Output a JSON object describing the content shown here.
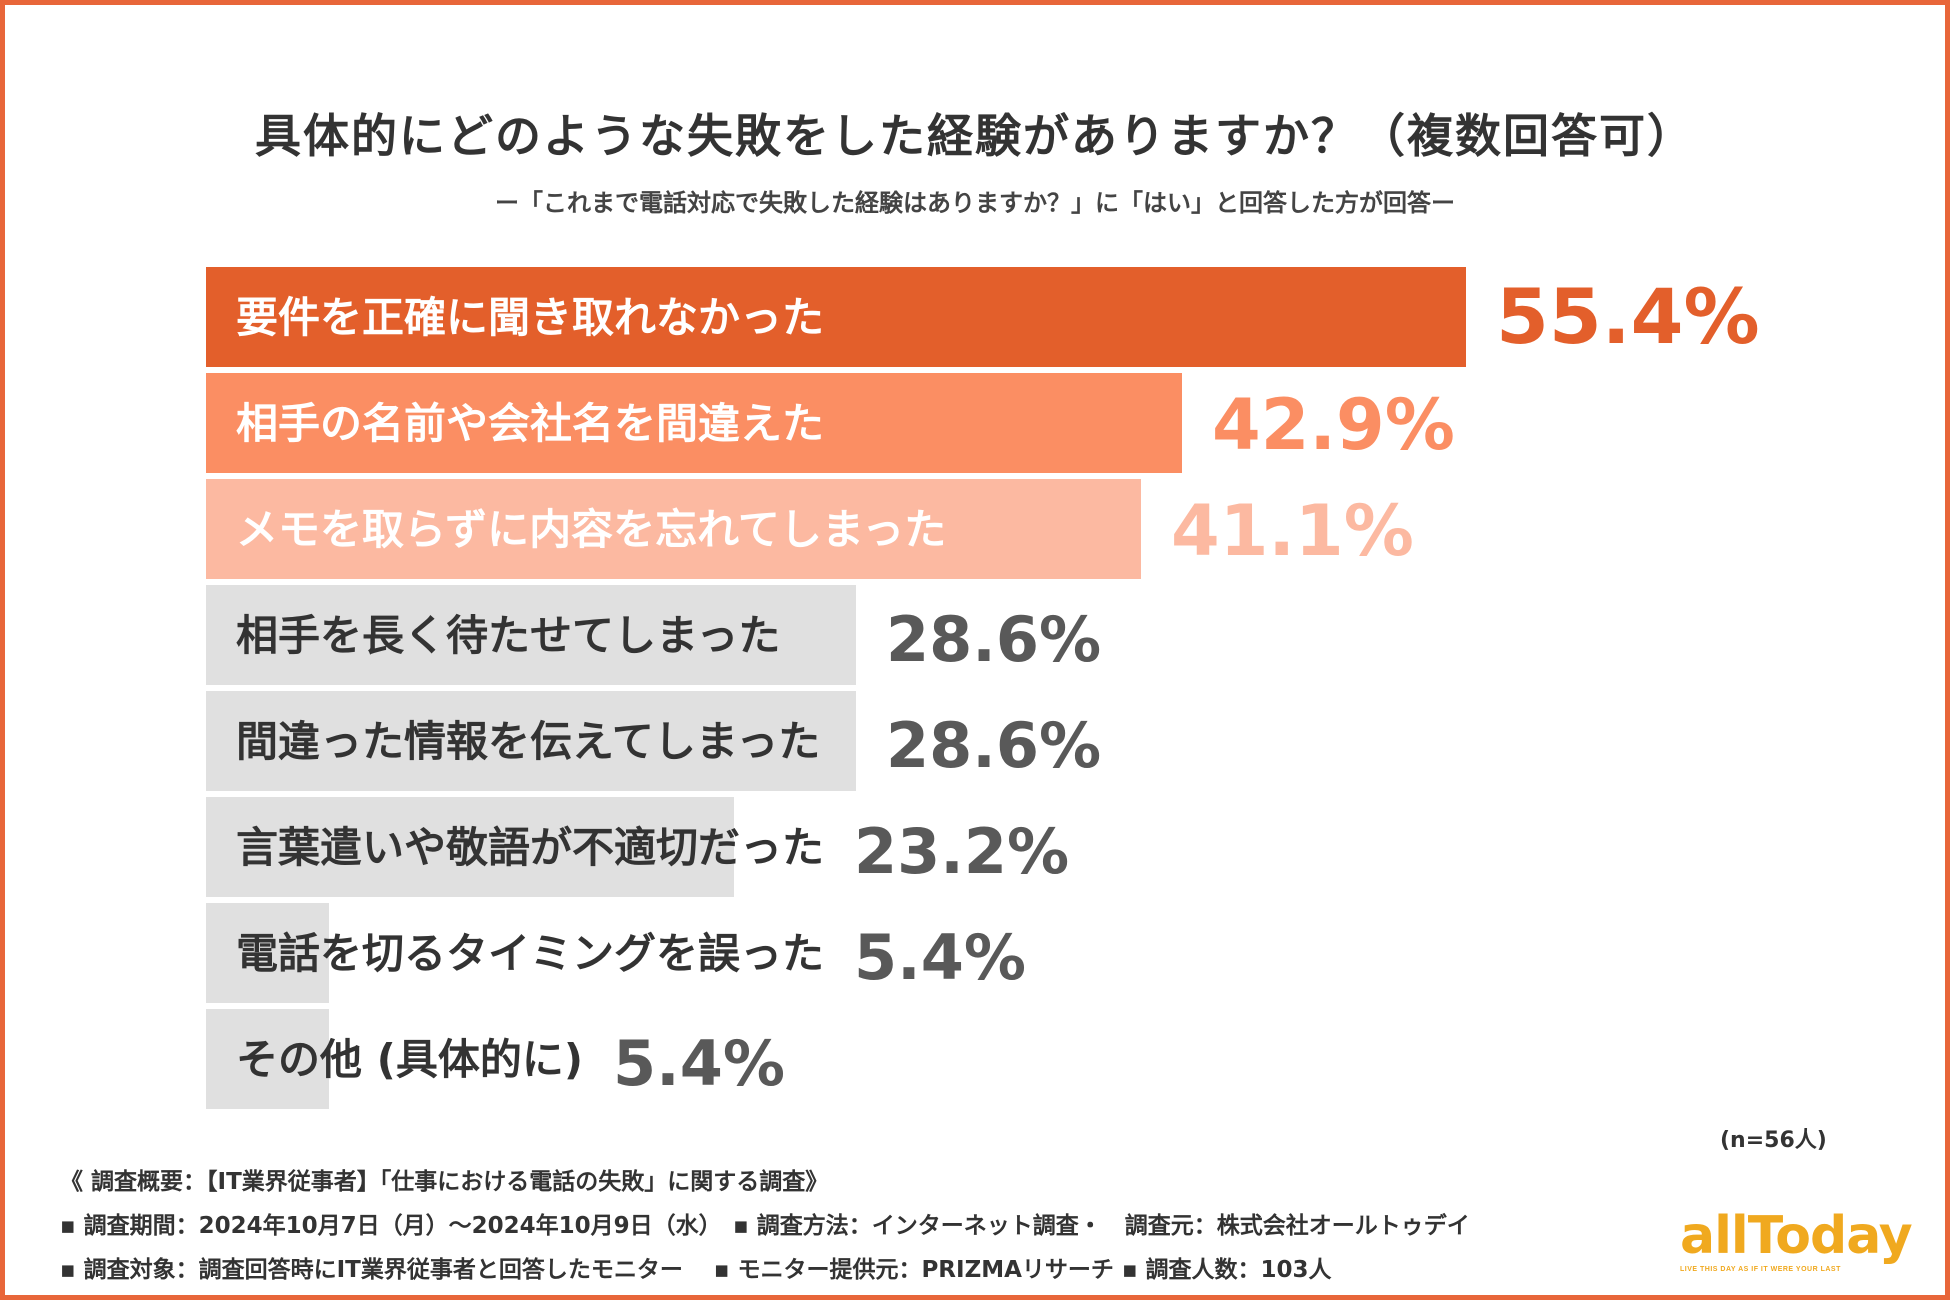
{
  "title": "具体的にどのような失敗をした経験がありますか？（複数回答可）",
  "subtitle": "ー「これまで電話対応で失敗した経験はありますか？」に「はい」と回答した方が回答ー",
  "n_label": "(n=56人)",
  "footer": {
    "line1": "《 調査概要：【IT業界従事者】「仕事における電話の失敗」に関する調査》",
    "line2": "▪ 調査期間：2024年10月7日（月）～2024年10月9日（水）　▪ 調査方法：インターネット調査・　調査元：株式会社オールトゥデイ",
    "line3": "▪ 調査対象：調査回答時にIT業界従事者と回答したモニター　 ▪ モニター提供元：PRIZMAリサーチ ▪ 調査人数：103人"
  },
  "logo": {
    "text": "allToday",
    "tagline": "LIVE THIS DAY AS IF IT WERE YOUR LAST"
  },
  "colors": {
    "frame": "#e8663a",
    "bar1": "#e35f2b",
    "bar2": "#fb8e63",
    "bar3": "#fcb9a1",
    "bar_gray": "#e0e0e0",
    "text_dark": "#333333",
    "value_gray": "#595959"
  },
  "chart_data": {
    "type": "bar",
    "orientation": "horizontal",
    "title": "具体的にどのような失敗をした経験がありますか？（複数回答可）",
    "xlabel": "",
    "ylabel": "",
    "unit": "%",
    "xlim": [
      0,
      55.4
    ],
    "categories": [
      "要件を正確に聞き取れなかった",
      "相手の名前や会社名を間違えた",
      "メモを取らずに内容を忘れてしまった",
      "相手を長く待たせてしまった",
      "間違った情報を伝えてしまった",
      "言葉遣いや敬語が不適切だった",
      "電話を切るタイミングを誤った",
      "その他 (具体的に)"
    ],
    "values": [
      55.4,
      42.9,
      41.1,
      28.6,
      28.6,
      23.2,
      5.4,
      5.4
    ],
    "value_labels": [
      "55.4%",
      "42.9%",
      "41.1%",
      "28.6%",
      "28.6%",
      "23.2%",
      "5.4%",
      "5.4%"
    ]
  }
}
